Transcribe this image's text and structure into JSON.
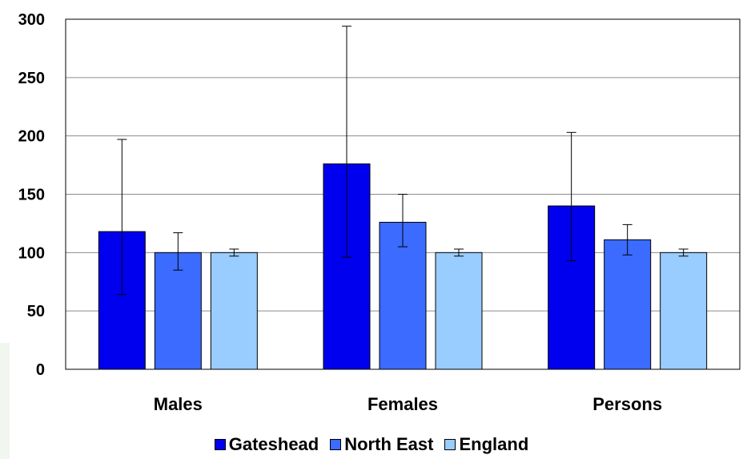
{
  "chart_data": {
    "type": "bar",
    "categories": [
      "Males",
      "Females",
      "Persons"
    ],
    "series": [
      {
        "name": "Gateshead",
        "color": "#0000ee",
        "values": [
          118,
          176,
          140
        ],
        "ci_low": [
          64,
          96,
          93
        ],
        "ci_high": [
          197,
          294,
          203
        ]
      },
      {
        "name": "North East",
        "color": "#3b6bff",
        "values": [
          100,
          126,
          111
        ],
        "ci_low": [
          85,
          105,
          98
        ],
        "ci_high": [
          117,
          150,
          124
        ]
      },
      {
        "name": "England",
        "color": "#99ccff",
        "values": [
          100,
          100,
          100
        ],
        "ci_low": [
          97,
          97,
          97
        ],
        "ci_high": [
          103,
          103,
          103
        ]
      }
    ],
    "ylim": [
      0,
      300
    ],
    "yticks": [
      0,
      50,
      100,
      150,
      200,
      250,
      300
    ],
    "grid": true,
    "legend_position": "bottom",
    "title": "",
    "xlabel": "",
    "ylabel": ""
  }
}
